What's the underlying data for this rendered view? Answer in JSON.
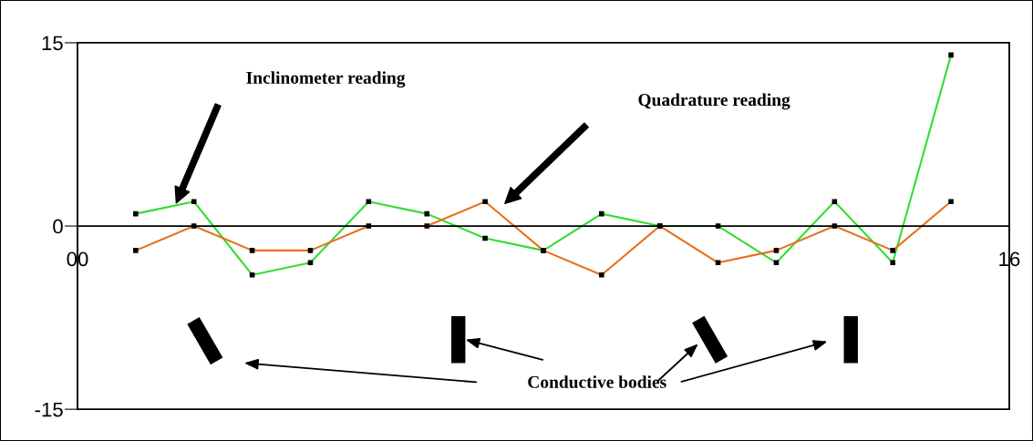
{
  "chart_data": {
    "type": "line",
    "x": [
      1,
      2,
      3,
      4,
      5,
      6,
      7,
      8,
      9,
      10,
      11,
      12,
      13,
      14,
      15
    ],
    "series": [
      {
        "color": "#33dd33",
        "values": [
          1,
          2,
          -4,
          -3,
          2,
          1,
          -1,
          -2,
          1,
          0,
          0,
          -3,
          2,
          -3,
          14
        ]
      },
      {
        "color": "#e8701e",
        "values": [
          -2,
          0,
          -2,
          -2,
          0,
          0,
          2,
          -2,
          -4,
          0,
          -3,
          -2,
          0,
          -2,
          2
        ]
      }
    ],
    "xlim": [
      0,
      16
    ],
    "xticks": [
      {
        "value": 0,
        "label": "00"
      },
      16
    ],
    "ylim": [
      -15,
      15
    ],
    "yticks": [
      -15,
      0,
      15
    ],
    "grid": false,
    "legend": false,
    "marker": "square",
    "line_style": "solid",
    "annotations": [
      "Inclinometer reading",
      "Quadrature reading",
      "Conductive bodies"
    ]
  }
}
